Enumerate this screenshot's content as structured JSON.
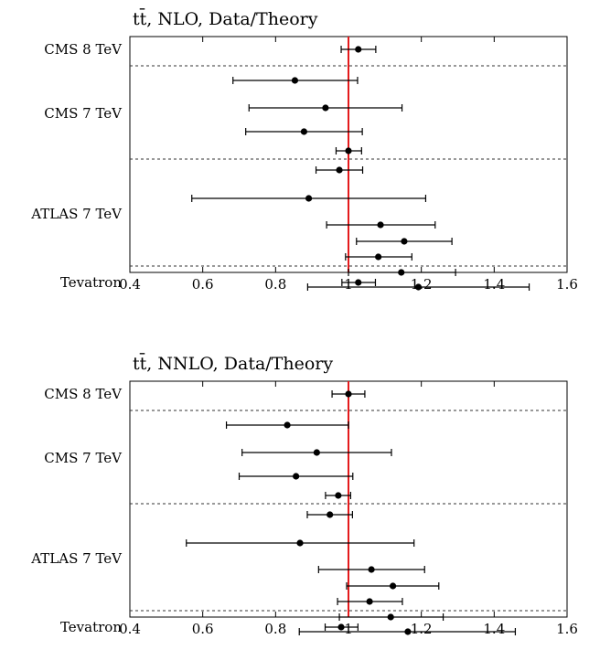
{
  "chart_data": [
    {
      "type": "scatter",
      "title": "tt̄, NLO, Data/Theory",
      "xlabel": "",
      "ylabel": "",
      "xlim": [
        0.4,
        1.6
      ],
      "xticks": [
        0.4,
        0.6,
        0.8,
        1.0,
        1.2,
        1.4,
        1.6
      ],
      "xtick_labels": [
        "0.4",
        "0.6",
        "0.8",
        "1",
        "1.2",
        "1.4",
        "1.6"
      ],
      "reference_line": {
        "x": 1.0,
        "color": "#e41a1c"
      },
      "groups": [
        {
          "label": "CMS 8 TeV",
          "points": [
            {
              "value": 1.027,
              "lo": 0.98,
              "hi": 1.075
            }
          ]
        },
        {
          "label": "CMS 7 TeV",
          "points": [
            {
              "value": 0.853,
              "lo": 0.683,
              "hi": 1.025
            },
            {
              "value": 0.937,
              "lo": 0.727,
              "hi": 1.147
            },
            {
              "value": 0.878,
              "lo": 0.718,
              "hi": 1.038
            },
            {
              "value": 1.0,
              "lo": 0.966,
              "hi": 1.036
            },
            {
              "value": 0.975,
              "lo": 0.911,
              "hi": 1.039
            }
          ]
        },
        {
          "label": "ATLAS 7 TeV",
          "points": [
            {
              "value": 0.891,
              "lo": 0.57,
              "hi": 1.212
            },
            {
              "value": 1.088,
              "lo": 0.94,
              "hi": 1.238
            },
            {
              "value": 1.153,
              "lo": 1.022,
              "hi": 1.284
            },
            {
              "value": 1.082,
              "lo": 0.992,
              "hi": 1.174
            },
            {
              "value": 1.145,
              "lo": 1.0,
              "hi": 1.294
            },
            {
              "value": 1.192,
              "lo": 0.888,
              "hi": 1.496
            }
          ]
        },
        {
          "label": "Tevatron",
          "points": [
            {
              "value": 1.027,
              "lo": 0.982,
              "hi": 1.074
            }
          ]
        }
      ]
    },
    {
      "type": "scatter",
      "title": "tt̄, NNLO, Data/Theory",
      "xlabel": "",
      "ylabel": "",
      "xlim": [
        0.4,
        1.6
      ],
      "xticks": [
        0.4,
        0.6,
        0.8,
        1.0,
        1.2,
        1.4,
        1.6
      ],
      "xtick_labels": [
        "0.4",
        "0.6",
        "0.8",
        "1",
        "1.2",
        "1.4",
        "1.6"
      ],
      "reference_line": {
        "x": 1.0,
        "color": "#e41a1c"
      },
      "groups": [
        {
          "label": "CMS 8 TeV",
          "points": [
            {
              "value": 1.0,
              "lo": 0.955,
              "hi": 1.045
            }
          ]
        },
        {
          "label": "CMS 7 TeV",
          "points": [
            {
              "value": 0.832,
              "lo": 0.665,
              "hi": 1.0
            },
            {
              "value": 0.913,
              "lo": 0.708,
              "hi": 1.118
            },
            {
              "value": 0.856,
              "lo": 0.7,
              "hi": 1.012
            },
            {
              "value": 0.972,
              "lo": 0.937,
              "hi": 1.006
            },
            {
              "value": 0.949,
              "lo": 0.887,
              "hi": 1.011
            }
          ]
        },
        {
          "label": "ATLAS 7 TeV",
          "points": [
            {
              "value": 0.867,
              "lo": 0.555,
              "hi": 1.18
            },
            {
              "value": 1.063,
              "lo": 0.918,
              "hi": 1.209
            },
            {
              "value": 1.122,
              "lo": 0.995,
              "hi": 1.248
            },
            {
              "value": 1.058,
              "lo": 0.97,
              "hi": 1.148
            },
            {
              "value": 1.116,
              "lo": 0.975,
              "hi": 1.26
            },
            {
              "value": 1.163,
              "lo": 0.865,
              "hi": 1.458
            }
          ]
        },
        {
          "label": "Tevatron",
          "points": [
            {
              "value": 0.98,
              "lo": 0.936,
              "hi": 1.026
            }
          ]
        }
      ]
    }
  ]
}
